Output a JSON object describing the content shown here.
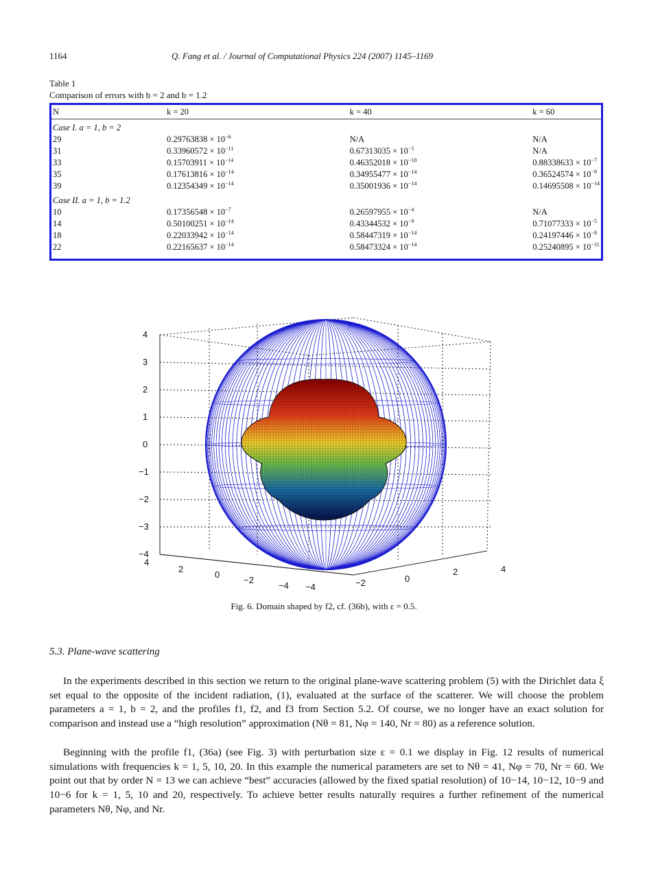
{
  "header": {
    "page_number": "1164",
    "citation": "Q. Fang et al. / Journal of Computational Physics 224 (2007) 1145–1169"
  },
  "table": {
    "label": "Table 1",
    "caption": "Comparison of errors with b = 2 and b = 1.2",
    "columns": [
      "N",
      "k = 20",
      "k = 40",
      "k = 60"
    ],
    "case1_label": "Case I. a = 1, b = 2",
    "case1_rows": [
      [
        "29",
        "0.29763838 × 10",
        "−6",
        "N/A",
        "",
        "N/A",
        ""
      ],
      [
        "31",
        "0.33960572 × 10",
        "−11",
        "0.67313035 × 10",
        "−5",
        "N/A",
        ""
      ],
      [
        "33",
        "0.15703911 × 10",
        "−14",
        "0.46352018 × 10",
        "−10",
        "0.88338633 × 10",
        "−7"
      ],
      [
        "35",
        "0.17613816 × 10",
        "−14",
        "0.34955477 × 10",
        "−14",
        "0.36524574 × 10",
        "−9"
      ],
      [
        "39",
        "0.12354349 × 10",
        "−14",
        "0.35001936 × 10",
        "−14",
        "0.14695508 × 10",
        "−14"
      ]
    ],
    "case2_label": "Case II. a = 1, b = 1.2",
    "case2_rows": [
      [
        "10",
        "0.17356548 × 10",
        "−7",
        "0.26597955 × 10",
        "−4",
        "N/A",
        ""
      ],
      [
        "14",
        "0.50100251 × 10",
        "−14",
        "0.43344532 × 10",
        "−9",
        "0.71077333 × 10",
        "−5"
      ],
      [
        "18",
        "0.22033942 × 10",
        "−14",
        "0.58447319 × 10",
        "−14",
        "0.24197446 × 10",
        "−8"
      ],
      [
        "22",
        "0.22165637 × 10",
        "−14",
        "0.58473324 × 10",
        "−14",
        "0.25240895 × 10",
        "−11"
      ]
    ]
  },
  "figure": {
    "caption": "Fig. 6. Domain shaped by f2, cf. (36b), with ε = 0.5.",
    "z_ticks": [
      "4",
      "3",
      "2",
      "1",
      "0",
      "−1",
      "−2",
      "−3",
      "−4"
    ],
    "x_ticks": [
      "4",
      "2",
      "0",
      "−2",
      "−4"
    ],
    "y_ticks": [
      "−4",
      "−2",
      "0",
      "2",
      "4"
    ]
  },
  "section": {
    "title": "5.3. Plane-wave scattering"
  },
  "paragraphs": {
    "p1": "In the experiments described in this section we return to the original plane-wave scattering problem (5) with the Dirichlet data ξ set equal to the opposite of the incident radiation, (1), evaluated at the surface of the scatterer. We will choose the problem parameters a = 1, b = 2, and the profiles f1, f2, and f3 from Section 5.2. Of course, we no longer have an exact solution for comparison and instead use a “high resolution” approximation (Nθ = 81, Nφ = 140, Nr = 80) as a reference solution.",
    "p2": "Beginning with the profile f1, (36a) (see Fig. 3) with perturbation size ε = 0.1 we display in Fig. 12 results of numerical simulations with frequencies k = 1, 5, 10, 20. In this example the numerical parameters are set to Nθ = 41, Nφ = 70, Nr = 60. We point out that by order N = 13 we can achieve “best” accuracies (allowed by the fixed spatial resolution) of 10−14, 10−12, 10−9 and 10−6 for k = 1, 5, 10 and 20, respectively. To achieve better results naturally requires a further refinement of the numerical parameters Nθ, Nφ, and Nr."
  }
}
